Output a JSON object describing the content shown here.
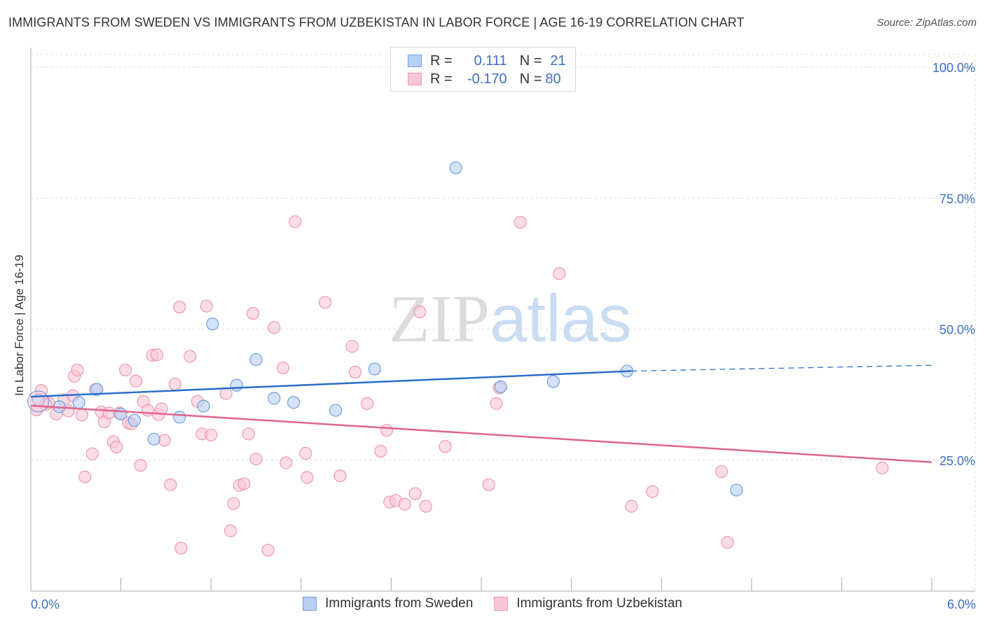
{
  "title": "IMMIGRANTS FROM SWEDEN VS IMMIGRANTS FROM UZBEKISTAN IN LABOR FORCE | AGE 16-19 CORRELATION CHART",
  "source": "Source: ZipAtlas.com",
  "watermark": {
    "zip": "ZIP",
    "atlas": "atlas"
  },
  "legend": {
    "r_label": "R =",
    "n_label": "N =",
    "sweden": {
      "r": "0.111",
      "n": "21"
    },
    "uzbekistan": {
      "r": "-0.170",
      "n": "80"
    }
  },
  "colors": {
    "sweden_fill": "#b8d0f5",
    "sweden_stroke": "#6f9fe0",
    "sweden_line": "#2a6ecb",
    "uzbek_fill": "#f9c6d4",
    "uzbek_stroke": "#ee98b2",
    "uzbek_line": "#e0648e",
    "tick_label": "#3a6fc4",
    "grid": "#dddddd"
  },
  "chart_data": {
    "type": "scatter",
    "title": "IMMIGRANTS FROM SWEDEN VS IMMIGRANTS FROM UZBEKISTAN IN LABOR FORCE | AGE 16-19 CORRELATION CHART",
    "xlabel": "",
    "ylabel": "In Labor Force | Age 16-19",
    "xlim": [
      0,
      6
    ],
    "ylim": [
      0,
      100
    ],
    "x_tick_labels": [
      "0.0%",
      "6.0%"
    ],
    "y_ticks": [
      25,
      50,
      75,
      100
    ],
    "y_tick_labels": [
      "25.0%",
      "50.0%",
      "75.0%",
      "100.0%"
    ],
    "legend_position": "top-center",
    "series": [
      {
        "name": "Immigrants from Sweden",
        "points": [
          [
            0.05,
            36.5
          ],
          [
            0.19,
            35.2
          ],
          [
            0.32,
            36.0
          ],
          [
            0.44,
            38.5
          ],
          [
            0.6,
            33.8
          ],
          [
            0.69,
            32.6
          ],
          [
            0.82,
            29.0
          ],
          [
            0.99,
            33.2
          ],
          [
            1.15,
            35.3
          ],
          [
            1.21,
            51.0
          ],
          [
            1.37,
            39.3
          ],
          [
            1.5,
            44.2
          ],
          [
            1.62,
            36.8
          ],
          [
            1.75,
            36.0
          ],
          [
            2.03,
            34.5
          ],
          [
            2.29,
            42.4
          ],
          [
            2.83,
            80.8
          ],
          [
            3.13,
            39.0
          ],
          [
            3.48,
            40.0
          ],
          [
            3.97,
            42.0
          ],
          [
            4.7,
            19.3
          ]
        ],
        "trend": {
          "x0": 0.0,
          "y0": 37.1,
          "x1": 4.0,
          "y1": 42.0,
          "dash_to_x": 6.0,
          "dash_to_y": 43.1
        }
      },
      {
        "name": "Immigrants from Uzbekistan",
        "points": [
          [
            0.04,
            34.6
          ],
          [
            0.07,
            38.3
          ],
          [
            0.12,
            35.9
          ],
          [
            0.17,
            33.8
          ],
          [
            0.22,
            36.5
          ],
          [
            0.25,
            34.4
          ],
          [
            0.28,
            37.3
          ],
          [
            0.29,
            41.0
          ],
          [
            0.31,
            42.2
          ],
          [
            0.34,
            33.6
          ],
          [
            0.36,
            21.8
          ],
          [
            0.41,
            26.2
          ],
          [
            0.43,
            38.5
          ],
          [
            0.47,
            34.2
          ],
          [
            0.49,
            32.3
          ],
          [
            0.52,
            34.0
          ],
          [
            0.55,
            28.5
          ],
          [
            0.57,
            27.5
          ],
          [
            0.59,
            34.0
          ],
          [
            0.63,
            42.2
          ],
          [
            0.65,
            32.1
          ],
          [
            0.67,
            31.9
          ],
          [
            0.7,
            40.1
          ],
          [
            0.73,
            24.0
          ],
          [
            0.75,
            36.2
          ],
          [
            0.78,
            34.5
          ],
          [
            0.81,
            45.0
          ],
          [
            0.84,
            45.1
          ],
          [
            0.85,
            33.7
          ],
          [
            0.87,
            34.8
          ],
          [
            0.89,
            28.8
          ],
          [
            0.93,
            20.3
          ],
          [
            0.96,
            39.5
          ],
          [
            0.99,
            54.2
          ],
          [
            1.0,
            8.2
          ],
          [
            1.06,
            44.8
          ],
          [
            1.11,
            36.2
          ],
          [
            1.14,
            30.0
          ],
          [
            1.17,
            54.4
          ],
          [
            1.2,
            29.8
          ],
          [
            1.3,
            37.7
          ],
          [
            1.33,
            11.5
          ],
          [
            1.35,
            16.7
          ],
          [
            1.39,
            20.2
          ],
          [
            1.42,
            20.5
          ],
          [
            1.45,
            30.0
          ],
          [
            1.48,
            53.0
          ],
          [
            1.5,
            25.2
          ],
          [
            1.58,
            7.8
          ],
          [
            1.62,
            50.3
          ],
          [
            1.68,
            42.6
          ],
          [
            1.7,
            24.5
          ],
          [
            1.76,
            70.5
          ],
          [
            1.83,
            26.3
          ],
          [
            1.84,
            21.7
          ],
          [
            1.96,
            55.1
          ],
          [
            2.06,
            22.0
          ],
          [
            2.14,
            46.7
          ],
          [
            2.16,
            41.8
          ],
          [
            2.24,
            35.8
          ],
          [
            2.33,
            26.7
          ],
          [
            2.37,
            30.7
          ],
          [
            2.39,
            17.0
          ],
          [
            2.43,
            17.3
          ],
          [
            2.49,
            16.6
          ],
          [
            2.56,
            18.6
          ],
          [
            2.59,
            53.3
          ],
          [
            2.63,
            16.2
          ],
          [
            2.76,
            27.6
          ],
          [
            3.05,
            20.3
          ],
          [
            3.1,
            35.8
          ],
          [
            3.12,
            38.8
          ],
          [
            3.26,
            70.4
          ],
          [
            3.52,
            60.6
          ],
          [
            4.0,
            16.2
          ],
          [
            4.14,
            19.0
          ],
          [
            4.6,
            22.8
          ],
          [
            4.64,
            9.3
          ],
          [
            5.67,
            23.5
          ],
          [
            0.1,
            35.6
          ]
        ],
        "trend": {
          "x0": 0.0,
          "y0": 35.4,
          "x1": 6.0,
          "y1": 24.6
        }
      }
    ]
  },
  "bottom_legend": {
    "sweden": "Immigrants from Sweden",
    "uzbekistan": "Immigrants from Uzbekistan"
  }
}
